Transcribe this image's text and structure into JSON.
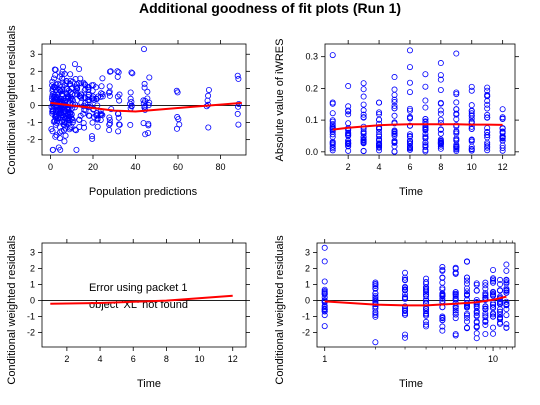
{
  "title": "Additional goodness of fit plots (Run 1)",
  "colors": {
    "points": "#0000ff",
    "smooth": "#ff0000",
    "refline": "#000000",
    "frame": "#000000"
  },
  "chart_data": [
    {
      "type": "scatter",
      "xlabel": "Population predictions",
      "ylabel": "Conditional weighted residuals",
      "xlim": [
        -4,
        92
      ],
      "ylim": [
        -2.9,
        3.6
      ],
      "xticks": [
        0,
        20,
        40,
        60,
        80
      ],
      "yticks": [
        -2,
        -1,
        0,
        1,
        2,
        3
      ],
      "reference_line_y": 0,
      "x_groups": [
        1,
        2,
        3,
        4,
        5,
        6,
        7,
        8,
        9,
        10,
        12,
        14,
        16,
        18,
        20,
        22,
        24,
        28,
        32,
        38,
        44,
        46,
        60,
        74,
        88
      ],
      "group_counts": [
        20,
        20,
        22,
        22,
        22,
        20,
        20,
        18,
        18,
        18,
        16,
        16,
        14,
        14,
        14,
        12,
        12,
        12,
        12,
        10,
        10,
        8,
        6,
        6,
        6
      ],
      "x_outliers": [
        [
          44,
          3.3
        ]
      ],
      "smooth": {
        "x": [
          0,
          10,
          20,
          30,
          40,
          50,
          60,
          70,
          80,
          90
        ],
        "y": [
          0.15,
          0.0,
          -0.15,
          -0.3,
          -0.35,
          -0.25,
          -0.15,
          -0.05,
          0.05,
          0.15
        ]
      }
    },
    {
      "type": "scatter",
      "xlabel": "Time",
      "ylabel": "Absolute value of iWRES",
      "xlim": [
        0.5,
        12.8
      ],
      "ylim": [
        -0.01,
        0.34
      ],
      "xticks": [
        2,
        4,
        6,
        8,
        10,
        12
      ],
      "yticks": [
        0.0,
        0.1,
        0.2,
        0.3
      ],
      "x_groups": [
        1,
        2,
        3,
        4,
        5,
        6,
        7,
        8,
        9,
        10,
        11,
        12
      ],
      "group_counts": [
        22,
        24,
        24,
        26,
        26,
        26,
        26,
        24,
        24,
        22,
        22,
        22
      ],
      "x_outliers": [
        [
          1,
          0.305
        ],
        [
          6,
          0.32
        ],
        [
          9,
          0.31
        ]
      ],
      "smooth": {
        "x": [
          1,
          2,
          3,
          4,
          5,
          6,
          7,
          8,
          9,
          10,
          11,
          12
        ],
        "y": [
          0.07,
          0.076,
          0.08,
          0.084,
          0.086,
          0.087,
          0.087,
          0.087,
          0.087,
          0.086,
          0.086,
          0.085
        ]
      }
    },
    {
      "type": "line",
      "xlabel": "Time",
      "ylabel": "Conditional weighted residuals",
      "xlim": [
        0.5,
        12.8
      ],
      "ylim": [
        -2.9,
        3.6
      ],
      "xticks": [
        2,
        4,
        6,
        8,
        10,
        12
      ],
      "yticks": [
        -2,
        -1,
        0,
        1,
        2,
        3
      ],
      "reference_line_y": 0,
      "annotation": [
        "Error using packet 1",
        "object 'XL' not found"
      ],
      "smooth": {
        "x": [
          1,
          4,
          8,
          12
        ],
        "y": [
          -0.2,
          -0.15,
          0.0,
          0.3
        ]
      }
    },
    {
      "type": "scatter",
      "xlabel": "Time",
      "ylabel": "Conditional weighted residuals",
      "x_scale": "log",
      "xlim": [
        0.9,
        13.5
      ],
      "ylim": [
        -2.9,
        3.6
      ],
      "xticks": [
        1,
        10
      ],
      "xticklabels": [
        "1",
        "10"
      ],
      "yticks": [
        -2,
        -1,
        0,
        1,
        2,
        3
      ],
      "reference_line_y": 0,
      "x_groups": [
        1,
        2,
        3,
        4,
        5,
        6,
        7,
        8,
        9,
        10,
        11,
        12
      ],
      "group_counts": [
        22,
        24,
        24,
        26,
        26,
        26,
        26,
        24,
        24,
        22,
        22,
        22
      ],
      "x_outliers": [
        [
          1,
          3.3
        ]
      ],
      "smooth": {
        "x": [
          1,
          2,
          3,
          4,
          6,
          8,
          10,
          12
        ],
        "y": [
          -0.05,
          -0.25,
          -0.3,
          -0.3,
          -0.2,
          -0.1,
          0.05,
          0.25
        ]
      }
    }
  ]
}
